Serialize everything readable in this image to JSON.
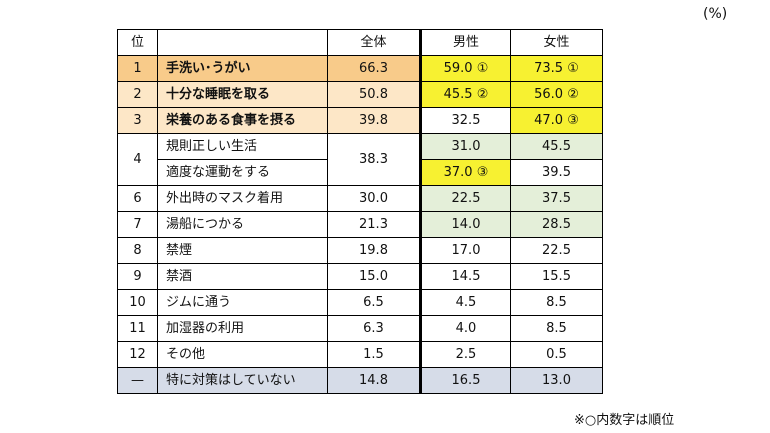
{
  "unit": "(%)",
  "footnote": "※○内数字は順位",
  "headers": {
    "rank": "位",
    "item": "",
    "all": "全体",
    "male": "男性",
    "female": "女性"
  },
  "rows": [
    {
      "rank": "1",
      "item": "手洗い･うがい",
      "all": "66.3",
      "male": "59.0 ①",
      "female": "73.5 ①"
    },
    {
      "rank": "2",
      "item": "十分な睡眠を取る",
      "all": "50.8",
      "male": "45.5 ②",
      "female": "56.0 ②"
    },
    {
      "rank": "3",
      "item": "栄養のある食事を摂る",
      "all": "39.8",
      "male": "32.5",
      "female": "47.0 ③"
    },
    {
      "rank": "4",
      "item": "規則正しい生活",
      "all": "38.3",
      "male": "31.0",
      "female": "45.5"
    },
    {
      "rank": "",
      "item": "適度な運動をする",
      "all": "",
      "male": "37.0 ③",
      "female": "39.5"
    },
    {
      "rank": "6",
      "item": "外出時のマスク着用",
      "all": "30.0",
      "male": "22.5",
      "female": "37.5"
    },
    {
      "rank": "7",
      "item": "湯船につかる",
      "all": "21.3",
      "male": "14.0",
      "female": "28.5"
    },
    {
      "rank": "8",
      "item": "禁煙",
      "all": "19.8",
      "male": "17.0",
      "female": "22.5"
    },
    {
      "rank": "9",
      "item": "禁酒",
      "all": "15.0",
      "male": "14.5",
      "female": "15.5"
    },
    {
      "rank": "10",
      "item": "ジムに通う",
      "all": "6.5",
      "male": "4.5",
      "female": "8.5"
    },
    {
      "rank": "11",
      "item": "加湿器の利用",
      "all": "6.3",
      "male": "4.0",
      "female": "8.5"
    },
    {
      "rank": "12",
      "item": "その他",
      "all": "1.5",
      "male": "2.5",
      "female": "0.5"
    },
    {
      "rank": "—",
      "item": "特に対策はしていない",
      "all": "14.8",
      "male": "16.5",
      "female": "13.0"
    }
  ]
}
